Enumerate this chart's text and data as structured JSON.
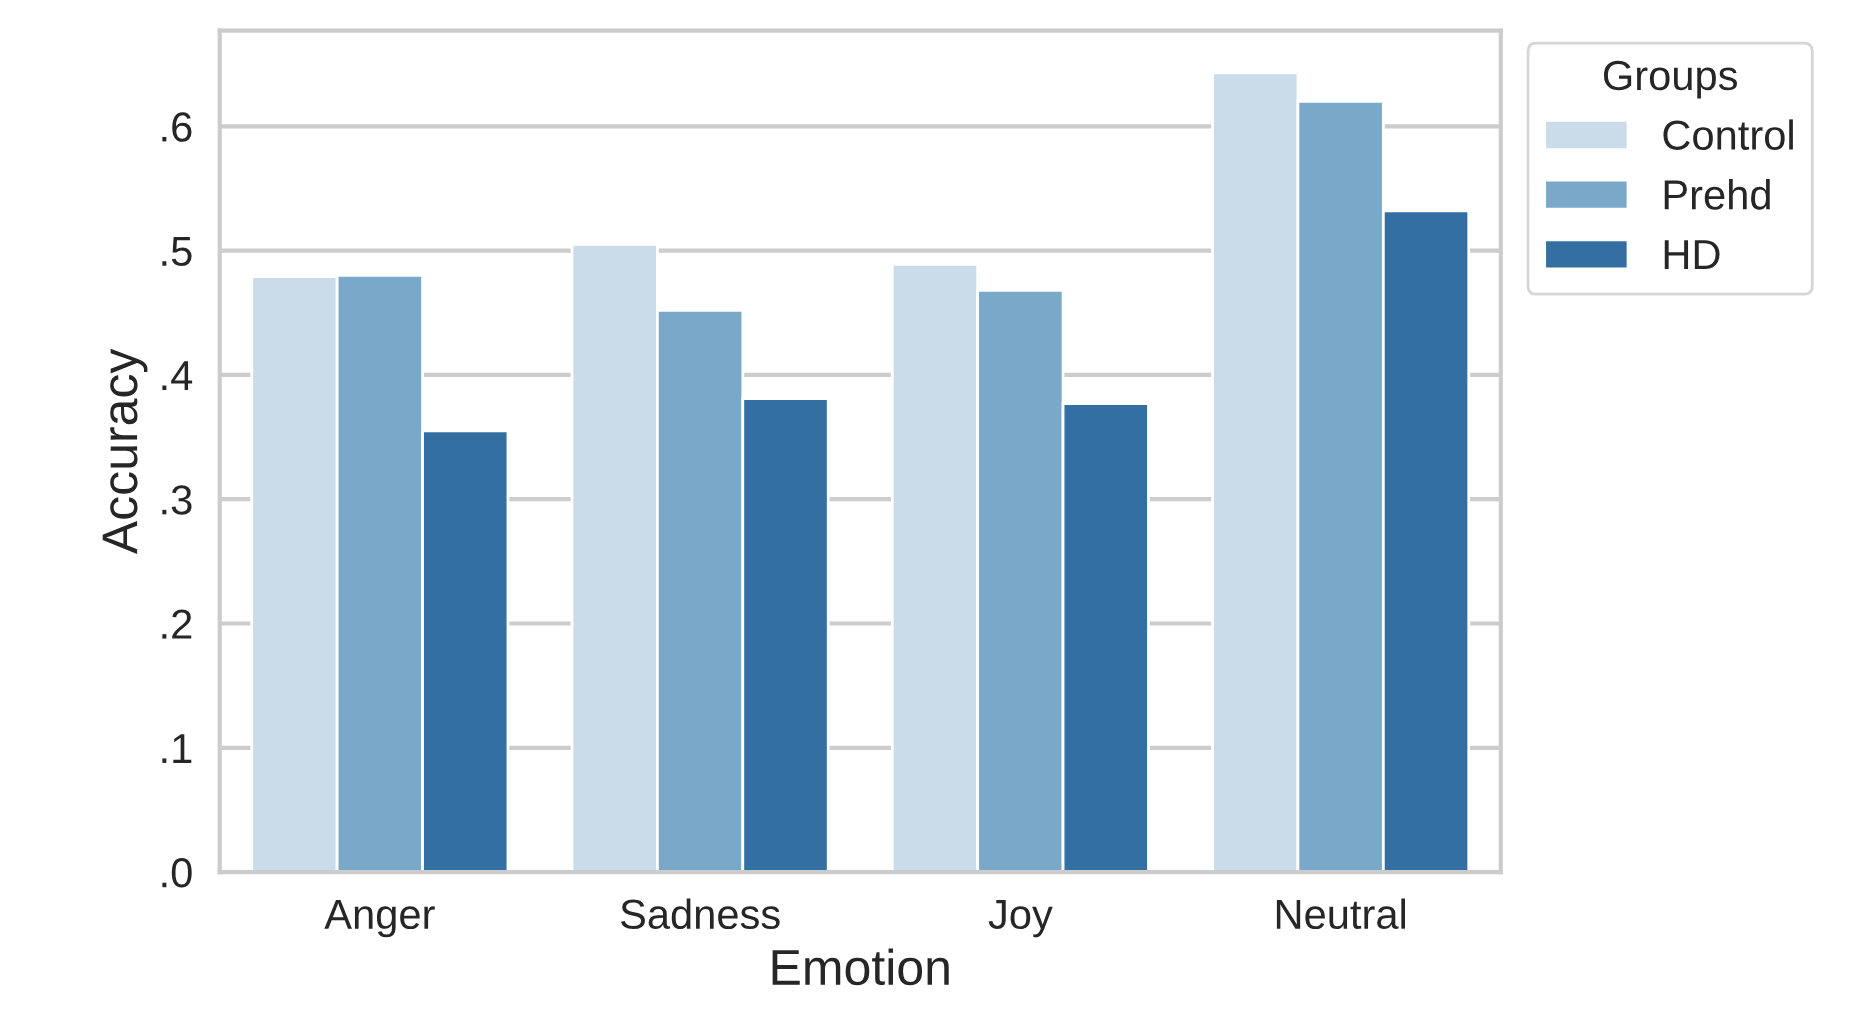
{
  "chart_data": {
    "type": "bar",
    "xlabel": "Emotion",
    "ylabel": "Accuracy",
    "legend_title": "Groups",
    "categories": [
      "Anger",
      "Sadness",
      "Joy",
      "Neutral"
    ],
    "series": [
      {
        "name": "Control",
        "color": "#cadbea",
        "values": [
          0.479,
          0.505,
          0.489,
          0.643
        ]
      },
      {
        "name": "Prehd",
        "color": "#79a8c8",
        "values": [
          0.48,
          0.452,
          0.468,
          0.62
        ]
      },
      {
        "name": "HD",
        "color": "#336fa2",
        "values": [
          0.355,
          0.381,
          0.377,
          0.532
        ]
      }
    ],
    "ylim": [
      0,
      0.677
    ],
    "yticks": [
      {
        "value": 0,
        "label": ".0"
      },
      {
        "value": 0.1,
        "label": ".1"
      },
      {
        "value": 0.2,
        "label": ".2"
      },
      {
        "value": 0.3,
        "label": ".3"
      },
      {
        "value": 0.4,
        "label": ".4"
      },
      {
        "value": 0.5,
        "label": ".5"
      },
      {
        "value": 0.6,
        "label": ".6"
      }
    ],
    "grid": "y",
    "legend": "top right"
  }
}
